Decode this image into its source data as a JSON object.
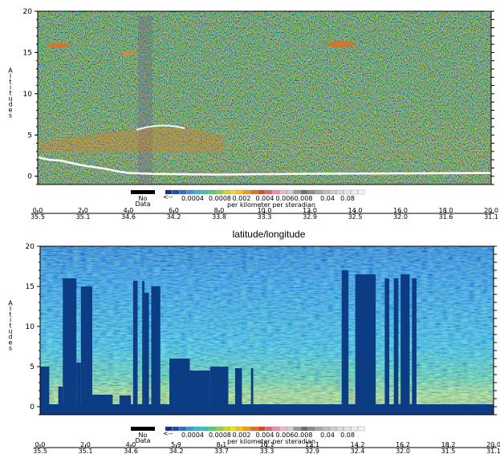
{
  "between_caption": "latitude/longitude",
  "colors": {
    "fill": "#0c3c83",
    "surface_line": "#ffffff"
  },
  "colorbar": {
    "nodata_label": [
      "No",
      "Data"
    ],
    "arrow": "<--",
    "tick_labels": [
      "0.0004",
      "0.0008",
      "0.002",
      "0.004",
      "0.006",
      "0.008",
      "0.04",
      "0.08"
    ],
    "unit": "per kilometer per steradian",
    "swatches": [
      "#1a2b8c",
      "#1f4aa8",
      "#2a6fc6",
      "#3a96d8",
      "#39b6d4",
      "#2fc9b4",
      "#49cf7e",
      "#8ad24a",
      "#c9d836",
      "#f2e01e",
      "#f7c414",
      "#f39b17",
      "#ea6f1d",
      "#d94a28",
      "#e06a6a",
      "#ee8ea8",
      "#f3b8c8",
      "#d0d0d0",
      "#9a9a9a",
      "#6e6e6e",
      "#8c8c8c",
      "#a8a8a8",
      "#bdbdbd",
      "#cfcfcf",
      "#dcdcdc",
      "#e6e6e6",
      "#eeeeee",
      "#f4f4f4"
    ]
  },
  "chart_data": [
    {
      "type": "heatmap",
      "ylabel": "Altitudes",
      "ylim": [
        -1,
        20
      ],
      "y_ticks": [
        "0",
        "5",
        "10",
        "15",
        "20"
      ],
      "x_tick_top": [
        "0.0",
        "2.0",
        "4.0",
        "6.0",
        "8.0",
        "10.0",
        "12.0",
        "14.0",
        "16.0",
        "18.0",
        "20.0"
      ],
      "x_tick_bottom": [
        "35.5",
        "35.1",
        "34.6",
        "34.2",
        "33.8",
        "33.3",
        "32.9",
        "32.5",
        "32.0",
        "31.6",
        "31.1"
      ],
      "x_range": [
        0,
        20
      ],
      "surface_line": [
        {
          "x": 0.0,
          "y": 2.3
        },
        {
          "x": 0.5,
          "y": 2.0
        },
        {
          "x": 1.0,
          "y": 1.9
        },
        {
          "x": 1.5,
          "y": 1.6
        },
        {
          "x": 2.0,
          "y": 1.3
        },
        {
          "x": 2.5,
          "y": 1.1
        },
        {
          "x": 3.0,
          "y": 0.9
        },
        {
          "x": 3.5,
          "y": 0.6
        },
        {
          "x": 4.0,
          "y": 0.4
        },
        {
          "x": 5.0,
          "y": 0.3
        },
        {
          "x": 8.0,
          "y": 0.2
        },
        {
          "x": 12.0,
          "y": 0.3
        },
        {
          "x": 16.0,
          "y": 0.35
        },
        {
          "x": 20.0,
          "y": 0.4
        }
      ]
    },
    {
      "type": "heatmap",
      "ylabel": "Altitudes",
      "ylim": [
        -1,
        20
      ],
      "y_ticks": [
        "0",
        "5",
        "10",
        "15",
        "20"
      ],
      "x_tick_top": [
        "0.0",
        "2.0",
        "4.0",
        "5.9",
        "8.1",
        "10.1",
        "12.1",
        "14.2",
        "16.2",
        "18.2",
        "20.0"
      ],
      "x_tick_bottom": [
        "35.5",
        "35.1",
        "34.6",
        "34.2",
        "33.7",
        "33.3",
        "32.9",
        "32.4",
        "32.0",
        "31.5",
        "31.1"
      ],
      "x_range": [
        0,
        20
      ],
      "nodata_columns": [
        {
          "x0": 0.0,
          "x1": 0.4,
          "top": 5.0
        },
        {
          "x0": 0.8,
          "x1": 1.0,
          "top": 2.5
        },
        {
          "x0": 1.0,
          "x1": 1.6,
          "top": 16.0
        },
        {
          "x0": 1.6,
          "x1": 1.8,
          "top": 5.5
        },
        {
          "x0": 1.8,
          "x1": 2.3,
          "top": 15.0
        },
        {
          "x0": 2.3,
          "x1": 3.2,
          "top": 1.5
        },
        {
          "x0": 3.5,
          "x1": 4.0,
          "top": 1.4
        },
        {
          "x0": 4.1,
          "x1": 4.3,
          "top": 15.7
        },
        {
          "x0": 4.5,
          "x1": 4.6,
          "top": 15.7
        },
        {
          "x0": 4.6,
          "x1": 4.8,
          "top": 14.2
        },
        {
          "x0": 4.9,
          "x1": 5.3,
          "top": 15.0
        },
        {
          "x0": 5.7,
          "x1": 6.6,
          "top": 6.0
        },
        {
          "x0": 6.6,
          "x1": 7.5,
          "top": 4.5
        },
        {
          "x0": 7.5,
          "x1": 8.3,
          "top": 5.0
        },
        {
          "x0": 8.6,
          "x1": 8.9,
          "top": 4.8
        },
        {
          "x0": 9.3,
          "x1": 9.4,
          "top": 4.8
        },
        {
          "x0": 13.3,
          "x1": 13.6,
          "top": 17.0
        },
        {
          "x0": 13.9,
          "x1": 14.8,
          "top": 16.5
        },
        {
          "x0": 15.2,
          "x1": 15.4,
          "top": 16.0
        },
        {
          "x0": 15.6,
          "x1": 15.8,
          "top": 16.0
        },
        {
          "x0": 15.9,
          "x1": 16.3,
          "top": 16.5
        },
        {
          "x0": 16.4,
          "x1": 16.6,
          "top": 16.0
        }
      ]
    }
  ]
}
